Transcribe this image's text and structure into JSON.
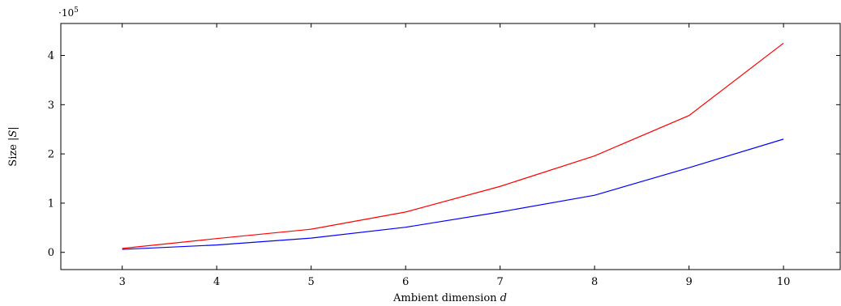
{
  "chart_data": {
    "type": "line",
    "x": [
      3,
      4,
      5,
      6,
      7,
      8,
      9,
      10
    ],
    "series": [
      {
        "color": "#ff0000",
        "values": [
          8000,
          28000,
          47000,
          82000,
          134000,
          196000,
          278000,
          425000
        ]
      },
      {
        "color": "#0000ff",
        "values": [
          6000,
          15000,
          29000,
          51000,
          82000,
          116000,
          172000,
          230000
        ]
      }
    ],
    "xlabel_prefix": "Ambient dimension ",
    "xlabel_var": "d",
    "ylabel_prefix": "Size |",
    "ylabel_var": "S",
    "ylabel_suffix": "|",
    "y_scale_base": "·10",
    "y_scale_exp": "5",
    "x_ticks": [
      "3",
      "4",
      "5",
      "6",
      "7",
      "8",
      "9",
      "10"
    ],
    "y_ticks": [
      "0",
      "1",
      "2",
      "3",
      "4"
    ],
    "xlim": [
      2.35,
      10.6
    ],
    "ylim": [
      -35000,
      465000
    ],
    "grid": false
  }
}
